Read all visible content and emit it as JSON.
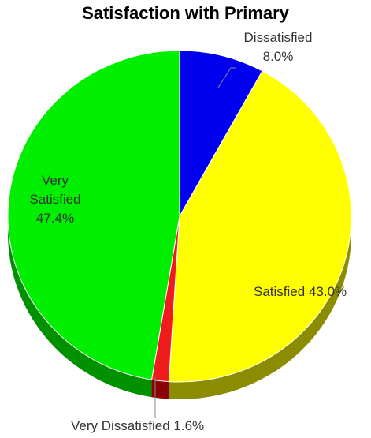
{
  "chart_data": {
    "type": "pie",
    "title": "Satisfaction with Primary",
    "categories": [
      "Dissatisfied",
      "Satisfied",
      "Very Dissatisfied",
      "Very Satisfied"
    ],
    "values": [
      8.0,
      43.0,
      1.6,
      47.4
    ],
    "value_labels": [
      "8.0%",
      "43.0%",
      "1.6%",
      "47.4%"
    ],
    "colors": [
      "#0000ee",
      "#ffff00",
      "#ee1c1c",
      "#00ee00"
    ],
    "side_colors": [
      "#000088",
      "#8c8c00",
      "#8b0000",
      "#009000"
    ],
    "style": "3d"
  }
}
